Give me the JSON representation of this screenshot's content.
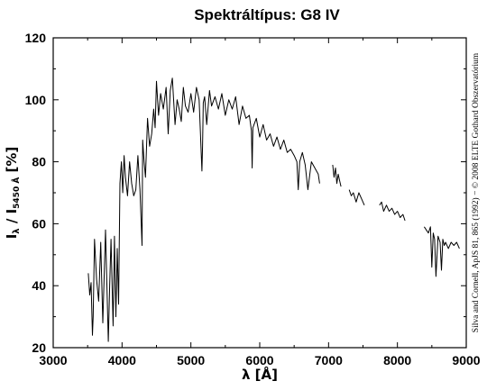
{
  "chart_data": {
    "type": "line",
    "title": "Spektráltípus: G8 IV",
    "xlabel": "λ [Å]",
    "ylabel": {
      "main": "I",
      "sub1": "λ",
      "mid": " / I",
      "sub2": "5450 Å",
      "unit": " [%]"
    },
    "credit": "Silva and Cornell, ApJS 81, 865 (1992) − © 2008 ELTE Gothard Obszervatórium",
    "xlim": [
      3000,
      9000
    ],
    "ylim": [
      20,
      120
    ],
    "xticks": [
      3000,
      4000,
      5000,
      6000,
      7000,
      8000,
      9000
    ],
    "yticks": [
      20,
      40,
      60,
      80,
      100,
      120
    ],
    "grid": false,
    "line_color": "#000000",
    "series": [
      {
        "x": [
          3510,
          3530,
          3550,
          3570,
          3580,
          3600,
          3630,
          3660,
          3690,
          3720,
          3760,
          3800,
          3820,
          3840,
          3870,
          3890,
          3910,
          3930,
          3950,
          3970,
          3990,
          4010,
          4030,
          4050,
          4080,
          4110,
          4140,
          4170,
          4200,
          4230,
          4260,
          4290,
          4300,
          4320,
          4340,
          4370,
          4400,
          4430,
          4460,
          4480,
          4500,
          4530,
          4560,
          4600,
          4640,
          4670,
          4700,
          4730,
          4770,
          4800,
          4830,
          4860,
          4890,
          4920,
          4960,
          5000,
          5040,
          5080,
          5120,
          5160,
          5170,
          5180,
          5200,
          5230,
          5270,
          5300,
          5350,
          5400,
          5450,
          5500,
          5550,
          5600,
          5650,
          5700,
          5750,
          5800,
          5850,
          5880,
          5890,
          5900,
          5950,
          6000,
          6050,
          6100,
          6150,
          6200,
          6250,
          6300,
          6350,
          6400,
          6450,
          6500,
          6540,
          6560,
          6580,
          6620,
          6660,
          6700,
          6750,
          6800,
          6850,
          6870
        ],
        "y": [
          44,
          37,
          41,
          24,
          30,
          55,
          42,
          35,
          54,
          28,
          58,
          22,
          40,
          55,
          27,
          56,
          30,
          52,
          34,
          73,
          80,
          70,
          82,
          75,
          69,
          80,
          73,
          69,
          71,
          82,
          71,
          53,
          87,
          80,
          75,
          94,
          85,
          89,
          97,
          91,
          106,
          95,
          102,
          97,
          104,
          89,
          103,
          107,
          92,
          100,
          97,
          93,
          104,
          98,
          96,
          102,
          96,
          104,
          100,
          77,
          85,
          99,
          101,
          92,
          103,
          98,
          101,
          97,
          102,
          95,
          100,
          97,
          101,
          92,
          98,
          94,
          95,
          90,
          78,
          91,
          94,
          88,
          92,
          87,
          89,
          85,
          88,
          84,
          87,
          83,
          84,
          82,
          80,
          71,
          80,
          83,
          79,
          71,
          80,
          78,
          76,
          73
        ]
      },
      {
        "x": [
          7060,
          7080,
          7100,
          7120,
          7140,
          7160,
          7180
        ],
        "y": [
          79,
          75,
          78,
          73,
          76,
          74,
          72
        ]
      },
      {
        "x": [
          7300,
          7330,
          7360,
          7400,
          7440,
          7480,
          7520
        ],
        "y": [
          71,
          69,
          70,
          67,
          70,
          68,
          66
        ]
      },
      {
        "x": [
          7740,
          7770,
          7800,
          7840,
          7880,
          7920,
          7960,
          8000,
          8040,
          8080,
          8110
        ],
        "y": [
          66,
          67,
          64,
          66,
          64,
          65,
          63,
          64,
          62,
          63,
          61
        ]
      },
      {
        "x": [
          8390,
          8420,
          8450,
          8480,
          8500,
          8520,
          8540,
          8560,
          8590,
          8620,
          8640,
          8660,
          8680,
          8700,
          8740,
          8780,
          8820,
          8860,
          8900
        ],
        "y": [
          59,
          58,
          57,
          59,
          46,
          57,
          55,
          43,
          56,
          54,
          45,
          55,
          53,
          54,
          52,
          54,
          53,
          54,
          52
        ]
      }
    ]
  }
}
